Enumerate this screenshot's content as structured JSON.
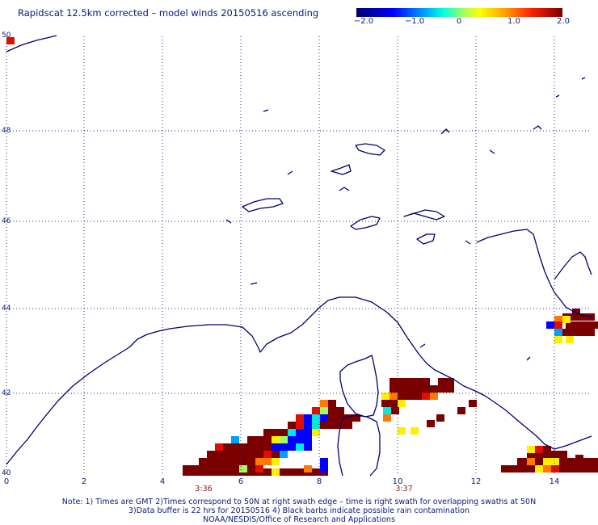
{
  "title": "Rapidscat 12.5km corrected – model winds 20150516 ascending",
  "colorbar": {
    "ticks": [
      "−2.0",
      "−1.0",
      "0",
      "1.0",
      "2.0"
    ],
    "colors": [
      "#00006e",
      "#0000ff",
      "#00a0ff",
      "#00ffe0",
      "#a0ff60",
      "#ffff00",
      "#ffa000",
      "#ff2000",
      "#7a0000"
    ]
  },
  "axes": {
    "lat_labels": [
      "50",
      "48",
      "46",
      "44",
      "42",
      "40"
    ],
    "lon_labels": [
      "0",
      "2",
      "4",
      "6",
      "8",
      "10",
      "12",
      "14"
    ],
    "lon_range": [
      0,
      15
    ],
    "lat_range": [
      40,
      50.1
    ]
  },
  "swath_times": [
    "3:36",
    "3:37"
  ],
  "notes": [
    "Note: 1) Times are GMT 2)Times correspond to 50N at right swath edge – time is right swath for overlapping swaths at 50N",
    "3)Data buffer is 22 hrs for 20150516 4) Black barbs indicate possible rain contamination",
    "NOAA/NESDIS/Office of Research and Applications"
  ],
  "colors": {
    "coastline": "#00006e",
    "grid": "#2a2a8a",
    "text": "#0a1a7a",
    "time": "#8a1a1a"
  }
}
